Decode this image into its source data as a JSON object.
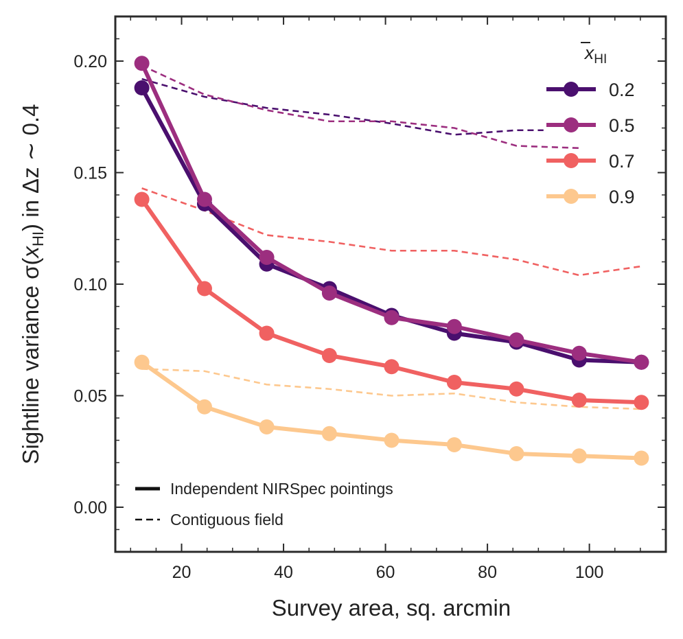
{
  "chart_data": {
    "type": "line",
    "title": "",
    "xlabel": "Survey area, sq. arcmin",
    "ylabel": {
      "prefix": "Sightline variance σ(",
      "var": "x",
      "sub": "HI",
      "suffix": ") in Δz ∼ 0.4"
    },
    "xlim": [
      7,
      115
    ],
    "ylim": [
      -0.02,
      0.22
    ],
    "xticks": [
      20,
      40,
      60,
      80,
      100
    ],
    "xtick_labels": [
      "20",
      "40",
      "60",
      "80",
      "100"
    ],
    "yticks": [
      0.0,
      0.05,
      0.1,
      0.15,
      0.2
    ],
    "ytick_labels": [
      "0.00",
      "0.05",
      "0.10",
      "0.15",
      "0.20"
    ],
    "x": [
      12.2,
      24.5,
      36.7,
      49.0,
      61.2,
      73.5,
      85.7,
      98.0,
      110.2
    ],
    "legend_title": {
      "var": "x",
      "sub": "HI"
    },
    "legend_position": "top-right",
    "style_legend": {
      "position": "bottom-left",
      "solid_label": "Independent NIRSpec pointings",
      "dashed_label": "Contiguous field"
    },
    "series": [
      {
        "name": "0.2",
        "color": "#4a0f6e",
        "independent": [
          0.188,
          0.136,
          0.109,
          0.098,
          0.086,
          0.078,
          0.074,
          0.066,
          0.065
        ],
        "contiguous_x": [
          12.2,
          24.5,
          36.7,
          49.0,
          61.2,
          73.5,
          85.7,
          91.0
        ],
        "contiguous": [
          0.192,
          0.184,
          0.179,
          0.176,
          0.172,
          0.167,
          0.169,
          0.169
        ]
      },
      {
        "name": "0.5",
        "color": "#9c2e7f",
        "independent": [
          0.199,
          0.138,
          0.112,
          0.096,
          0.085,
          0.081,
          0.075,
          0.069,
          0.065
        ],
        "contiguous_x": [
          12.2,
          24.5,
          36.7,
          49.0,
          61.2,
          73.5,
          85.7,
          98.0
        ],
        "contiguous": [
          0.198,
          0.185,
          0.178,
          0.173,
          0.173,
          0.17,
          0.162,
          0.161
        ]
      },
      {
        "name": "0.7",
        "color": "#f06161",
        "independent": [
          0.138,
          0.098,
          0.078,
          0.068,
          0.063,
          0.056,
          0.053,
          0.048,
          0.047
        ],
        "contiguous_x": [
          12.2,
          24.5,
          36.7,
          49.0,
          61.2,
          73.5,
          85.7,
          98.0,
          110.2
        ],
        "contiguous": [
          0.143,
          0.133,
          0.122,
          0.119,
          0.115,
          0.115,
          0.111,
          0.104,
          0.108
        ]
      },
      {
        "name": "0.9",
        "color": "#fdc88e",
        "independent": [
          0.065,
          0.045,
          0.036,
          0.033,
          0.03,
          0.028,
          0.024,
          0.023,
          0.022
        ],
        "contiguous_x": [
          12.2,
          24.5,
          36.7,
          49.0,
          61.2,
          73.5,
          85.7,
          98.0,
          110.2
        ],
        "contiguous": [
          0.062,
          0.061,
          0.055,
          0.053,
          0.05,
          0.051,
          0.047,
          0.045,
          0.044
        ]
      }
    ]
  }
}
